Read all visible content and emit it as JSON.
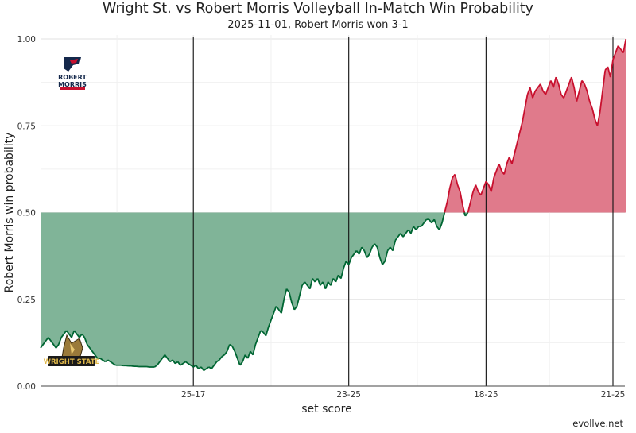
{
  "title": "Wright St. vs Robert Morris Volleyball In-Match Win Probability",
  "subtitle": "2025-11-01, Robert Morris won 3-1",
  "credit": "evollve.net",
  "colors": {
    "home": "#c8102e",
    "home_fill": "#e07a8b",
    "away": "#006633",
    "away_fill": "#80b498"
  },
  "logos": {
    "top": {
      "name": "robert-morris-logo",
      "lines": [
        "ROBERT",
        "MORRIS"
      ]
    },
    "bottom": {
      "name": "wright-state-logo",
      "text": "WRIGHT STATE"
    }
  },
  "chart_data": {
    "type": "area",
    "ylabel": "Robert Morris win probability",
    "xlabel": "set score",
    "ylim": [
      0,
      1
    ],
    "baseline": 0.5,
    "y_ticks": [
      "0.00",
      "0.25",
      "0.50",
      "0.75",
      "1.00"
    ],
    "set_end_points": [
      59,
      119,
      172,
      221
    ],
    "set_labels": [
      "25-17",
      "23-25",
      "18-25",
      "21-25"
    ],
    "x_max": 221,
    "series": [
      {
        "name": "Robert Morris",
        "values": [
          0.11,
          0.12,
          0.13,
          0.14,
          0.13,
          0.12,
          0.11,
          0.12,
          0.14,
          0.15,
          0.16,
          0.15,
          0.14,
          0.16,
          0.15,
          0.14,
          0.15,
          0.14,
          0.12,
          0.11,
          0.1,
          0.09,
          0.08,
          0.08,
          0.075,
          0.07,
          0.075,
          0.07,
          0.065,
          0.06,
          0.06,
          0.06,
          0.059,
          0.059,
          0.058,
          0.058,
          0.057,
          0.057,
          0.056,
          0.056,
          0.056,
          0.056,
          0.055,
          0.055,
          0.055,
          0.06,
          0.07,
          0.08,
          0.09,
          0.08,
          0.07,
          0.075,
          0.065,
          0.07,
          0.06,
          0.065,
          0.07,
          0.065,
          0.06,
          0.055,
          0.06,
          0.05,
          0.055,
          0.045,
          0.05,
          0.055,
          0.05,
          0.06,
          0.07,
          0.075,
          0.085,
          0.09,
          0.1,
          0.12,
          0.115,
          0.1,
          0.08,
          0.06,
          0.07,
          0.09,
          0.08,
          0.1,
          0.09,
          0.12,
          0.14,
          0.16,
          0.155,
          0.145,
          0.17,
          0.19,
          0.21,
          0.23,
          0.22,
          0.21,
          0.25,
          0.28,
          0.27,
          0.24,
          0.22,
          0.23,
          0.26,
          0.29,
          0.3,
          0.29,
          0.28,
          0.31,
          0.3,
          0.31,
          0.29,
          0.3,
          0.28,
          0.3,
          0.29,
          0.31,
          0.3,
          0.32,
          0.31,
          0.34,
          0.36,
          0.35,
          0.37,
          0.38,
          0.39,
          0.38,
          0.4,
          0.39,
          0.37,
          0.38,
          0.4,
          0.41,
          0.4,
          0.37,
          0.35,
          0.36,
          0.39,
          0.4,
          0.39,
          0.42,
          0.43,
          0.44,
          0.43,
          0.44,
          0.45,
          0.44,
          0.46,
          0.45,
          0.46,
          0.46,
          0.47,
          0.48,
          0.48,
          0.47,
          0.48,
          0.46,
          0.45,
          0.47,
          0.5,
          0.53,
          0.57,
          0.6,
          0.61,
          0.58,
          0.56,
          0.52,
          0.49,
          0.5,
          0.53,
          0.56,
          0.58,
          0.56,
          0.55,
          0.57,
          0.59,
          0.58,
          0.56,
          0.6,
          0.62,
          0.64,
          0.62,
          0.61,
          0.64,
          0.66,
          0.64,
          0.67,
          0.7,
          0.73,
          0.76,
          0.8,
          0.84,
          0.86,
          0.83,
          0.85,
          0.86,
          0.87,
          0.85,
          0.84,
          0.86,
          0.88,
          0.86,
          0.89,
          0.87,
          0.84,
          0.83,
          0.85,
          0.87,
          0.89,
          0.86,
          0.82,
          0.85,
          0.88,
          0.87,
          0.85,
          0.82,
          0.8,
          0.77,
          0.75,
          0.79,
          0.85,
          0.91,
          0.92,
          0.89,
          0.94,
          0.96,
          0.98,
          0.97,
          0.96,
          1.0
        ]
      }
    ]
  }
}
